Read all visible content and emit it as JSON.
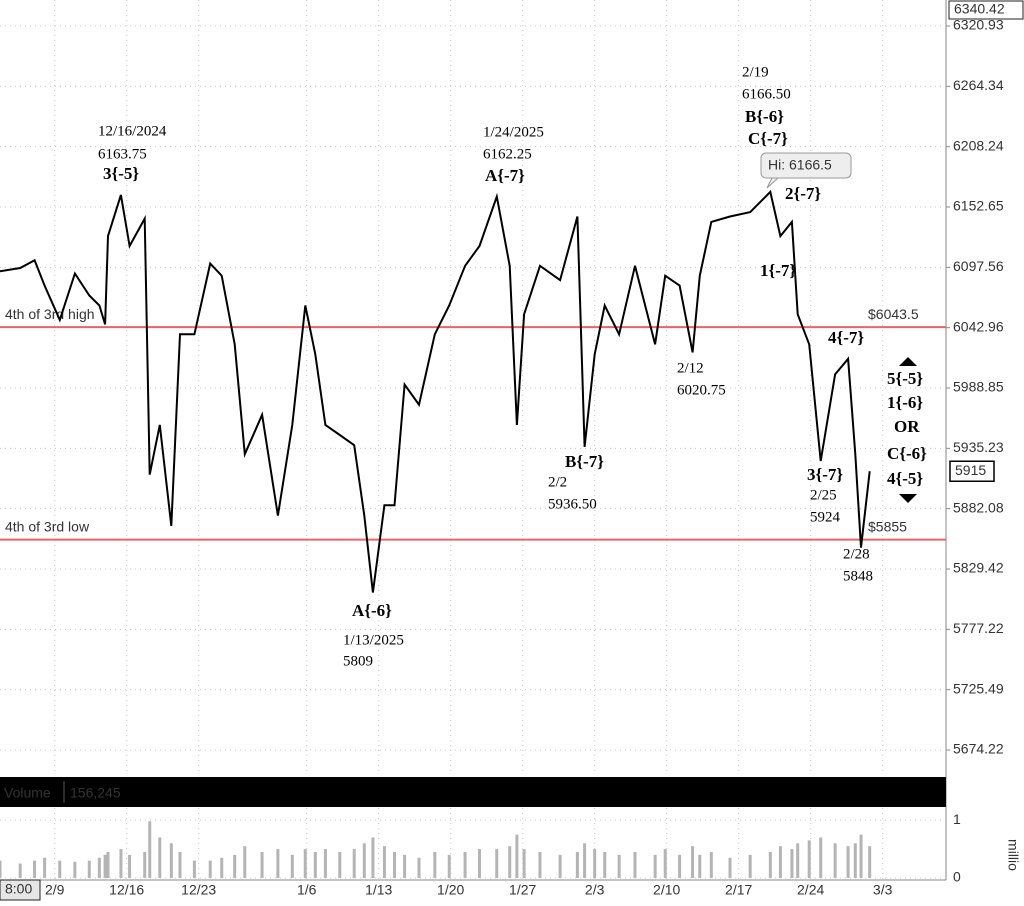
{
  "chart_data": [
    {
      "type": "line",
      "log_scale": true,
      "grid": true,
      "color": "#000000",
      "x": [
        -3.8,
        -2.4,
        -1.4,
        -0.7,
        0.35,
        1.4,
        2.4,
        3.1,
        3.5,
        3.7,
        4.6,
        5.2,
        6.25,
        6.6,
        7.3,
        8.1,
        8.7,
        9.7,
        10.8,
        11.6,
        12.5,
        13.2,
        14.4,
        15.5,
        16.5,
        17.4,
        18.1,
        18.8,
        19.8,
        20.8,
        21.5,
        22.1,
        22.9,
        23.6,
        24.3,
        25.3,
        26.4,
        27.4,
        28.5,
        29.5,
        30.7,
        31.6,
        32.1,
        32.6,
        33.7,
        35.1,
        36.3,
        36.8,
        37.5,
        38.2,
        39.2,
        40.3,
        41.7,
        42.4,
        43.4,
        44.3,
        44.8,
        45.6,
        46.9,
        48.3,
        49.7,
        50.4,
        51.2,
        51.6,
        52.4,
        53.2,
        54.2,
        55.1,
        55.6,
        56.0,
        56.6
      ],
      "values": [
        6094,
        6097,
        6104,
        6081,
        6050,
        6092,
        6072,
        6063,
        6046,
        6126,
        6163.75,
        6117,
        6142,
        5912,
        5956,
        5867,
        6037,
        6037,
        6101,
        6090,
        6028,
        5930,
        5965,
        5876,
        5956,
        6063,
        6019,
        5956,
        5947,
        5938,
        5876,
        5809,
        5885,
        5885,
        5992,
        5974,
        6037,
        6063,
        6099,
        6117,
        6162.25,
        6099,
        5956,
        6055,
        6099,
        6086,
        6144,
        5936.5,
        6019,
        6063,
        6037,
        6099,
        6028,
        6090,
        6081,
        6020.75,
        6090,
        6139,
        6144,
        6148,
        6166.5,
        6126,
        6139,
        6055,
        6028,
        5924,
        6001,
        6015,
        5930,
        5848,
        5915
      ],
      "xlim": [
        -3.8,
        61.9
      ],
      "xticks": [
        {
          "value": 0,
          "label": "2/9"
        },
        {
          "value": 5,
          "label": "12/16"
        },
        {
          "value": 10,
          "label": "12/23"
        },
        {
          "value": 17.5,
          "label": "1/6"
        },
        {
          "value": 22.5,
          "label": "1/13"
        },
        {
          "value": 27.5,
          "label": "1/20"
        },
        {
          "value": 32.5,
          "label": "1/27"
        },
        {
          "value": 37.5,
          "label": "2/3"
        },
        {
          "value": 42.5,
          "label": "2/10"
        },
        {
          "value": 47.5,
          "label": "2/17"
        },
        {
          "value": 52.5,
          "label": "2/24"
        },
        {
          "value": 57.5,
          "label": "3/3"
        }
      ],
      "x_start_label": "8:00",
      "ylim": [
        5653.1,
        6345.5
      ],
      "yticks": [
        6320.93,
        6264.34,
        6208.24,
        6152.65,
        6097.56,
        6042.96,
        5988.85,
        5935.23,
        5882.08,
        5829.42,
        5777.22,
        5725.49,
        5674.22
      ],
      "top_marker": 6340.42,
      "last_price": 5915,
      "high_label": "Hi: 6166.5",
      "reference_lines": [
        {
          "name": "4th of 3rd high",
          "level": {
            "value": 6043.5,
            "label": "$6043.5"
          },
          "color": "#f0606a"
        },
        {
          "name": "4th of 3rd low",
          "level": {
            "value": 5855,
            "label": "$5855"
          },
          "color": "#f0606a"
        }
      ],
      "annotations": [
        [
          "12/16/2024",
          "6163.75",
          "3{-5}"
        ],
        [
          "1/24/2025",
          "6162.25",
          "A{-7}"
        ],
        [
          "2/19",
          "6166.50",
          "B{-6}",
          "C{-7}"
        ],
        [
          "2{-7}"
        ],
        [
          "1{-7}"
        ],
        [
          "4{-7}"
        ],
        [
          "B{-7}",
          "2/2",
          "5936.50"
        ],
        [
          "2/12",
          "6020.75"
        ],
        [
          "A{-6}",
          "1/13/2025",
          "5809"
        ],
        [
          "3{-7}",
          "2/25",
          "5924"
        ],
        [
          "2/28",
          "5848"
        ],
        [
          "5{-5}",
          "1{-6}",
          "OR",
          "C{-6}",
          "4{-5}"
        ]
      ]
    },
    {
      "type": "bar",
      "title": "Volume",
      "current": {
        "value": 156245,
        "label": "156,245"
      },
      "color": "#b4b4b4",
      "y_label": "millio",
      "xlim": [
        -3.8,
        61.9
      ],
      "x": [
        -3.8,
        -2.4,
        -1.4,
        -0.7,
        0.35,
        1.4,
        2.4,
        3.1,
        3.5,
        3.7,
        4.6,
        5.2,
        6.25,
        6.6,
        7.3,
        8.1,
        8.7,
        9.7,
        10.8,
        11.6,
        12.5,
        13.2,
        14.4,
        15.5,
        16.5,
        17.4,
        18.1,
        18.8,
        19.8,
        20.8,
        21.5,
        22.1,
        22.9,
        23.6,
        24.3,
        25.3,
        26.4,
        27.4,
        28.5,
        29.5,
        30.7,
        31.6,
        32.1,
        32.6,
        33.7,
        35.1,
        36.3,
        36.8,
        37.5,
        38.2,
        39.2,
        40.3,
        41.7,
        42.4,
        43.4,
        44.3,
        44.8,
        45.6,
        46.9,
        48.3,
        49.7,
        50.4,
        51.2,
        51.6,
        52.4,
        53.2,
        54.2,
        55.1,
        55.6,
        56.0,
        56.6
      ],
      "values": [
        0.3,
        0.25,
        0.3,
        0.35,
        0.3,
        0.28,
        0.3,
        0.35,
        0.4,
        0.45,
        0.5,
        0.4,
        0.45,
        0.98,
        0.7,
        0.6,
        0.45,
        0.3,
        0.3,
        0.35,
        0.4,
        0.55,
        0.45,
        0.5,
        0.4,
        0.5,
        0.45,
        0.5,
        0.45,
        0.5,
        0.6,
        0.7,
        0.55,
        0.45,
        0.4,
        0.35,
        0.45,
        0.4,
        0.45,
        0.5,
        0.5,
        0.55,
        0.75,
        0.5,
        0.45,
        0.4,
        0.45,
        0.6,
        0.5,
        0.45,
        0.4,
        0.45,
        0.4,
        0.5,
        0.4,
        0.55,
        0.4,
        0.45,
        0.35,
        0.4,
        0.45,
        0.55,
        0.5,
        0.6,
        0.65,
        0.7,
        0.6,
        0.55,
        0.6,
        0.75,
        0.55
      ],
      "ylim": [
        0,
        1.21
      ],
      "yticks": [
        0,
        1
      ]
    }
  ]
}
